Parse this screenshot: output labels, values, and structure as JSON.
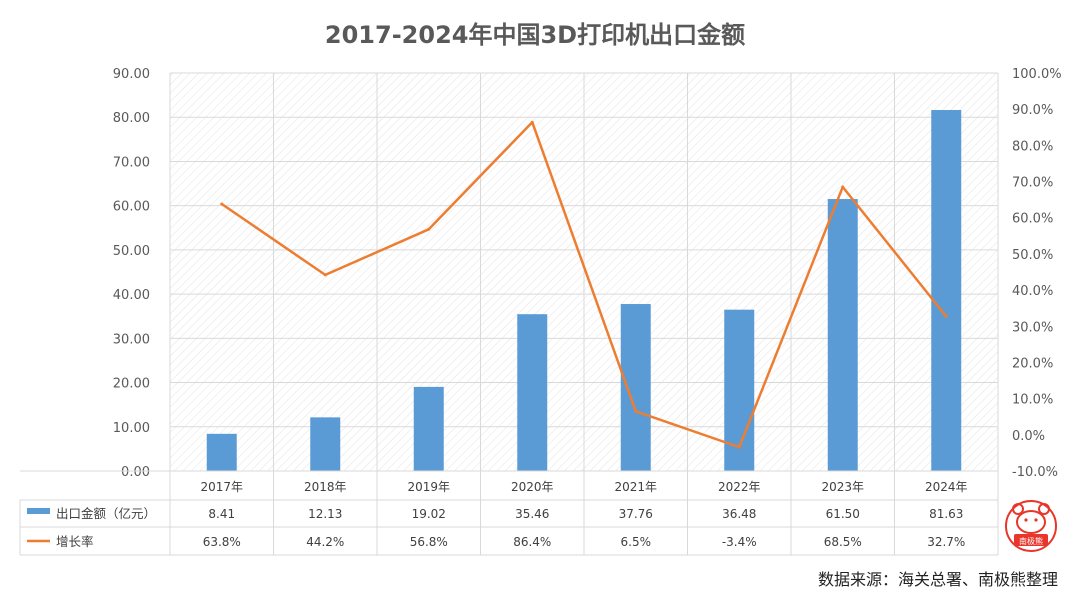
{
  "title": "2017-2024年中国3D打印机出口金额",
  "source": "数据来源：海关总署、南极熊整理",
  "logo_text": "南极熊",
  "colors": {
    "bar": "#5b9bd5",
    "line": "#ed7d31",
    "grid": "#d9d9d9",
    "text": "#595959",
    "logo": "#e8362b"
  },
  "chart_data": {
    "type": "bar",
    "categories": [
      "2017年",
      "2018年",
      "2019年",
      "2020年",
      "2021年",
      "2022年",
      "2023年",
      "2024年"
    ],
    "series": [
      {
        "name": "出口金额（亿元）",
        "type": "bar",
        "axis": "left",
        "values": [
          8.41,
          12.13,
          19.02,
          35.46,
          37.76,
          36.48,
          61.5,
          81.63
        ],
        "labels": [
          "8.41",
          "12.13",
          "19.02",
          "35.46",
          "37.76",
          "36.48",
          "61.50",
          "81.63"
        ]
      },
      {
        "name": "增长率",
        "type": "line",
        "axis": "right",
        "values": [
          63.8,
          44.2,
          56.8,
          86.4,
          6.5,
          -3.4,
          68.5,
          32.7
        ],
        "labels": [
          "63.8%",
          "44.2%",
          "56.8%",
          "86.4%",
          "6.5%",
          "-3.4%",
          "68.5%",
          "32.7%"
        ]
      }
    ],
    "y_left": {
      "range": [
        0,
        90
      ],
      "ticks": [
        "0.00",
        "10.00",
        "20.00",
        "30.00",
        "40.00",
        "50.00",
        "60.00",
        "70.00",
        "80.00",
        "90.00"
      ]
    },
    "y_right": {
      "range": [
        -10,
        100
      ],
      "ticks": [
        "-10.0%",
        "0.0%",
        "10.0%",
        "20.0%",
        "30.0%",
        "40.0%",
        "50.0%",
        "60.0%",
        "70.0%",
        "80.0%",
        "90.0%",
        "100.0%"
      ]
    },
    "grid": true,
    "legend": "data-table"
  }
}
